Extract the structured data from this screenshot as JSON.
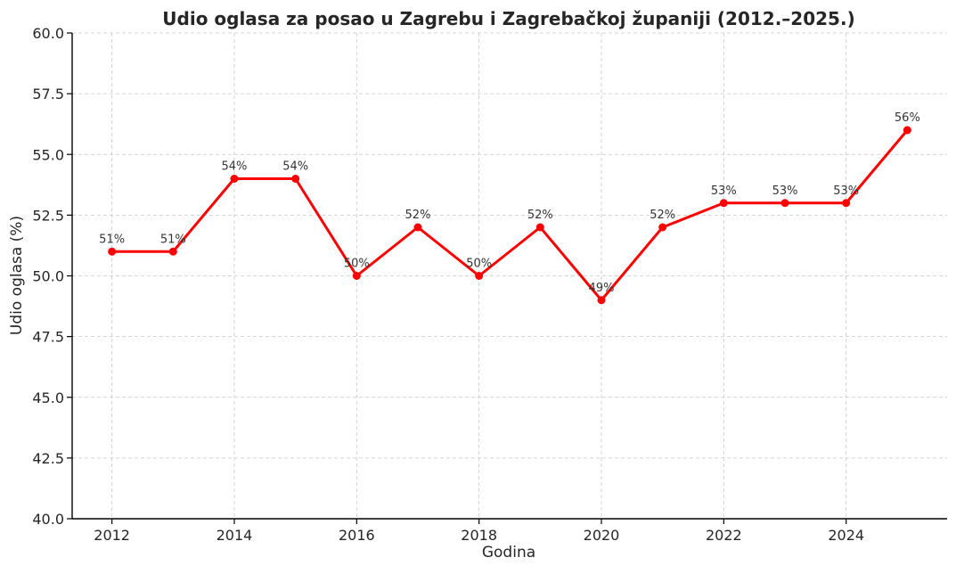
{
  "chart_data": {
    "type": "line",
    "title": "Udio oglasa za posao u Zagrebu i Zagrebačkoj županiji (2012.–2025.)",
    "xlabel": "Godina",
    "ylabel": "Udio oglasa (%)",
    "x": [
      2012,
      2013,
      2014,
      2015,
      2016,
      2017,
      2018,
      2019,
      2020,
      2021,
      2022,
      2023,
      2024,
      2025
    ],
    "series": [
      {
        "values": [
          51,
          51,
          54,
          54,
          50,
          52,
          50,
          52,
          49,
          52,
          53,
          53,
          53,
          56
        ],
        "color": "#ff0000"
      }
    ],
    "data_labels": [
      "51%",
      "51%",
      "54%",
      "54%",
      "50%",
      "52%",
      "50%",
      "52%",
      "49%",
      "52%",
      "53%",
      "53%",
      "53%",
      "56%"
    ],
    "ylim": [
      40,
      60
    ],
    "xlim": [
      2011.35,
      2025.65
    ],
    "yticks": [
      40,
      42.5,
      45,
      47.5,
      50,
      52.5,
      55,
      57.5,
      60
    ],
    "ytick_labels": [
      "40.0",
      "42.5",
      "45.0",
      "47.5",
      "50.0",
      "52.5",
      "55.0",
      "57.5",
      "60.0"
    ],
    "xticks": [
      2012,
      2014,
      2016,
      2018,
      2020,
      2022,
      2024
    ],
    "xtick_labels": [
      "2012",
      "2014",
      "2016",
      "2018",
      "2020",
      "2022",
      "2024"
    ],
    "grid": true,
    "markers": true
  }
}
